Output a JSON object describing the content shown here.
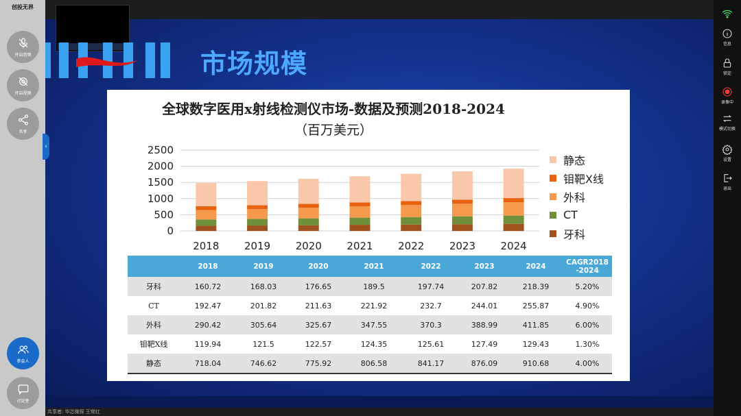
{
  "sidebar": {
    "logo": "创投无界",
    "items": [
      {
        "label": "开启音频",
        "icon": "mic-off-icon"
      },
      {
        "label": "开启视频",
        "icon": "camera-off-icon"
      },
      {
        "label": "共享",
        "icon": "share-icon"
      },
      {
        "label": "参会人",
        "icon": "participants-icon"
      },
      {
        "label": "讨论室",
        "icon": "chat-icon"
      }
    ]
  },
  "right_bar": {
    "items": [
      {
        "label": "",
        "icon": "signal-icon"
      },
      {
        "label": "信息",
        "icon": "info-icon"
      },
      {
        "label": "锁定",
        "icon": "lock-icon"
      },
      {
        "label": "录像中",
        "icon": "record-icon"
      },
      {
        "label": "模式切换",
        "icon": "switch-icon"
      },
      {
        "label": "设置",
        "icon": "gear-icon"
      },
      {
        "label": "退出",
        "icon": "exit-icon"
      }
    ]
  },
  "slide": {
    "title": "市场规模"
  },
  "chart_data": {
    "type": "bar",
    "stacked": true,
    "title": "全球数字医用x射线检测仪市场-数据及预测2018-2024",
    "subtitle": "（百万美元）",
    "categories": [
      "2018",
      "2019",
      "2020",
      "2021",
      "2022",
      "2023",
      "2024"
    ],
    "ylim": [
      0,
      2500
    ],
    "yticks": [
      "0",
      "500",
      "1000",
      "1500",
      "2000",
      "2500"
    ],
    "grid": true,
    "legend_position": "right",
    "series": [
      {
        "name": "牙科",
        "color": "#a0521e",
        "values": [
          160.72,
          168.03,
          176.65,
          189.5,
          197.74,
          207.82,
          218.39
        ]
      },
      {
        "name": "CT",
        "color": "#6f8f3a",
        "values": [
          192.47,
          201.82,
          211.63,
          221.92,
          232.7,
          244.01,
          255.87
        ]
      },
      {
        "name": "外科",
        "color": "#f59a4c",
        "values": [
          290.42,
          305.64,
          325.67,
          347.55,
          370.3,
          388.99,
          411.85
        ]
      },
      {
        "name": "钼靶X线",
        "color": "#e8620f",
        "values": [
          119.94,
          121.5,
          122.57,
          124.35,
          125.61,
          127.49,
          129.43
        ]
      },
      {
        "name": "静态",
        "color": "#f9c8aa",
        "values": [
          718.04,
          746.62,
          775.92,
          806.58,
          841.17,
          876.09,
          910.68
        ]
      }
    ],
    "legend_order": [
      "静态",
      "钼靶X线",
      "外科",
      "CT",
      "牙科"
    ]
  },
  "table": {
    "headers": [
      "",
      "2018",
      "2019",
      "2020",
      "2021",
      "2022",
      "2023",
      "2024",
      "CAGR2018-2024"
    ],
    "rows": [
      [
        "牙科",
        "160.72",
        "168.03",
        "176.65",
        "189.5",
        "197.74",
        "207.82",
        "218.39",
        "5.20%"
      ],
      [
        "CT",
        "192.47",
        "201.82",
        "211.63",
        "221.92",
        "232.7",
        "244.01",
        "255.87",
        "4.90%"
      ],
      [
        "外科",
        "290.42",
        "305.64",
        "325.67",
        "347.55",
        "370.3",
        "388.99",
        "411.85",
        "6.00%"
      ],
      [
        "钼靶X线",
        "119.94",
        "121.5",
        "122.57",
        "124.35",
        "125.61",
        "127.49",
        "129.43",
        "1.30%"
      ],
      [
        "静态",
        "718.04",
        "746.62",
        "775.92",
        "806.58",
        "841.17",
        "876.09",
        "910.68",
        "4.00%"
      ]
    ]
  },
  "footer": {
    "text": "共享者: 华芯微探 王常红"
  }
}
